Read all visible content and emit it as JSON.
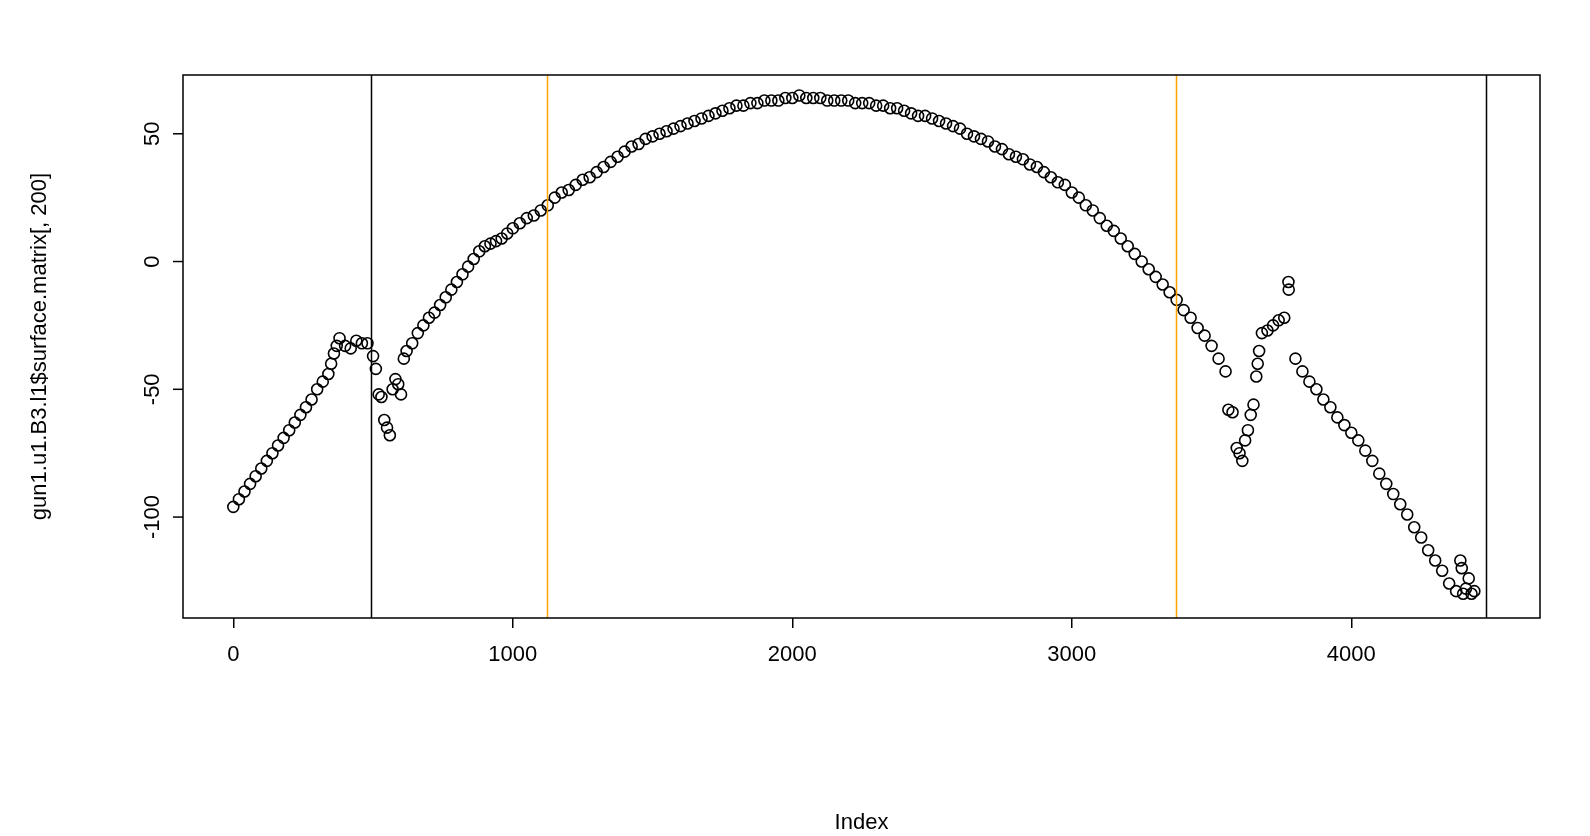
{
  "chart_data": {
    "type": "scatter",
    "marker": "circle",
    "color": "#000000",
    "grid": false,
    "x_label": "Index",
    "y_label": "gun1.u1.B3.l1$surface.matrix[, 200]",
    "xlim": [
      -180,
      4675
    ],
    "ylim": [
      -139.5,
      73
    ],
    "xticks": [
      0,
      1000,
      2000,
      3000,
      4000
    ],
    "yticks": [
      -100,
      -50,
      0,
      50
    ],
    "reference_lines": [
      {
        "value": 494,
        "color": "#000000"
      },
      {
        "value": 1123,
        "color": "#FFA500"
      },
      {
        "value": 3374,
        "color": "#FFA500"
      },
      {
        "value": 4483,
        "color": "#000000"
      }
    ],
    "x": [
      0,
      20,
      40,
      60,
      80,
      100,
      120,
      140,
      160,
      180,
      200,
      220,
      240,
      260,
      280,
      300,
      320,
      340,
      350,
      360,
      370,
      380,
      400,
      420,
      440,
      460,
      480,
      500,
      510,
      520,
      530,
      540,
      550,
      560,
      570,
      580,
      590,
      600,
      610,
      620,
      640,
      660,
      680,
      700,
      720,
      740,
      760,
      780,
      800,
      820,
      840,
      860,
      880,
      900,
      920,
      940,
      960,
      980,
      1000,
      1025,
      1050,
      1075,
      1100,
      1125,
      1150,
      1175,
      1200,
      1225,
      1250,
      1275,
      1300,
      1325,
      1350,
      1375,
      1400,
      1425,
      1450,
      1475,
      1500,
      1525,
      1550,
      1575,
      1600,
      1625,
      1650,
      1675,
      1700,
      1725,
      1750,
      1775,
      1800,
      1825,
      1850,
      1875,
      1900,
      1925,
      1950,
      1975,
      2000,
      2025,
      2050,
      2075,
      2100,
      2125,
      2150,
      2175,
      2200,
      2225,
      2250,
      2275,
      2300,
      2325,
      2350,
      2375,
      2400,
      2425,
      2450,
      2475,
      2500,
      2525,
      2550,
      2575,
      2600,
      2625,
      2650,
      2675,
      2700,
      2725,
      2750,
      2775,
      2800,
      2825,
      2850,
      2875,
      2900,
      2925,
      2950,
      2975,
      3000,
      3025,
      3050,
      3075,
      3100,
      3125,
      3150,
      3175,
      3200,
      3225,
      3250,
      3275,
      3300,
      3325,
      3350,
      3375,
      3400,
      3425,
      3450,
      3475,
      3500,
      3525,
      3550,
      3560,
      3575,
      3590,
      3600,
      3610,
      3620,
      3630,
      3640,
      3650,
      3660,
      3665,
      3670,
      3680,
      3700,
      3720,
      3740,
      3760,
      3775,
      3776,
      3800,
      3825,
      3850,
      3875,
      3900,
      3925,
      3950,
      3975,
      4000,
      4025,
      4050,
      4075,
      4100,
      4125,
      4150,
      4175,
      4200,
      4225,
      4250,
      4275,
      4300,
      4325,
      4350,
      4375,
      4390,
      4395,
      4400,
      4410,
      4420,
      4430,
      4440
    ],
    "values": [
      -96,
      -93,
      -90,
      -87,
      -84,
      -81,
      -78,
      -75,
      -72,
      -69,
      -66,
      -63,
      -60,
      -57,
      -54,
      -50,
      -47,
      -44,
      -40,
      -36,
      -33,
      -30,
      -33,
      -34,
      -31,
      -32,
      -32,
      -37,
      -42,
      -52,
      -53,
      -62,
      -65,
      -68,
      -50,
      -46,
      -48,
      -52,
      -38,
      -35,
      -32,
      -28,
      -25,
      -22,
      -20,
      -17,
      -14,
      -11,
      -8,
      -5,
      -2,
      1,
      4,
      6,
      7,
      8,
      9,
      11,
      13,
      15,
      17,
      18,
      20,
      22,
      25,
      27,
      28,
      30,
      32,
      33,
      35,
      37,
      39,
      41,
      43,
      45,
      46,
      48,
      49,
      50,
      51,
      52,
      53,
      54,
      55,
      56,
      57,
      58,
      59,
      60,
      61,
      61,
      62,
      62,
      63,
      63,
      63,
      64,
      64,
      65,
      64,
      64,
      64,
      63,
      63,
      63,
      63,
      62,
      62,
      62,
      61,
      61,
      60,
      60,
      59,
      58,
      57,
      57,
      56,
      55,
      54,
      53,
      52,
      50,
      49,
      48,
      47,
      45,
      44,
      42,
      41,
      40,
      38,
      37,
      35,
      33,
      31,
      30,
      27,
      25,
      22,
      20,
      17,
      14,
      12,
      9,
      6,
      3,
      0,
      -3,
      -6,
      -9,
      -12,
      -15,
      -19,
      -22,
      -26,
      -29,
      -33,
      -38,
      -43,
      -58,
      -59,
      -73,
      -75,
      -78,
      -70,
      -66,
      -60,
      -56,
      -45,
      -40,
      -35,
      -28,
      -27,
      -25,
      -23,
      -22,
      -8,
      -11,
      -38,
      -43,
      -47,
      -50,
      -54,
      -57,
      -61,
      -64,
      -67,
      -70,
      -74,
      -78,
      -83,
      -87,
      -91,
      -95,
      -99,
      -104,
      -108,
      -113,
      -117,
      -121,
      -126,
      -129,
      -117,
      -120,
      -130,
      -128,
      -124,
      -130,
      -129
    ]
  }
}
